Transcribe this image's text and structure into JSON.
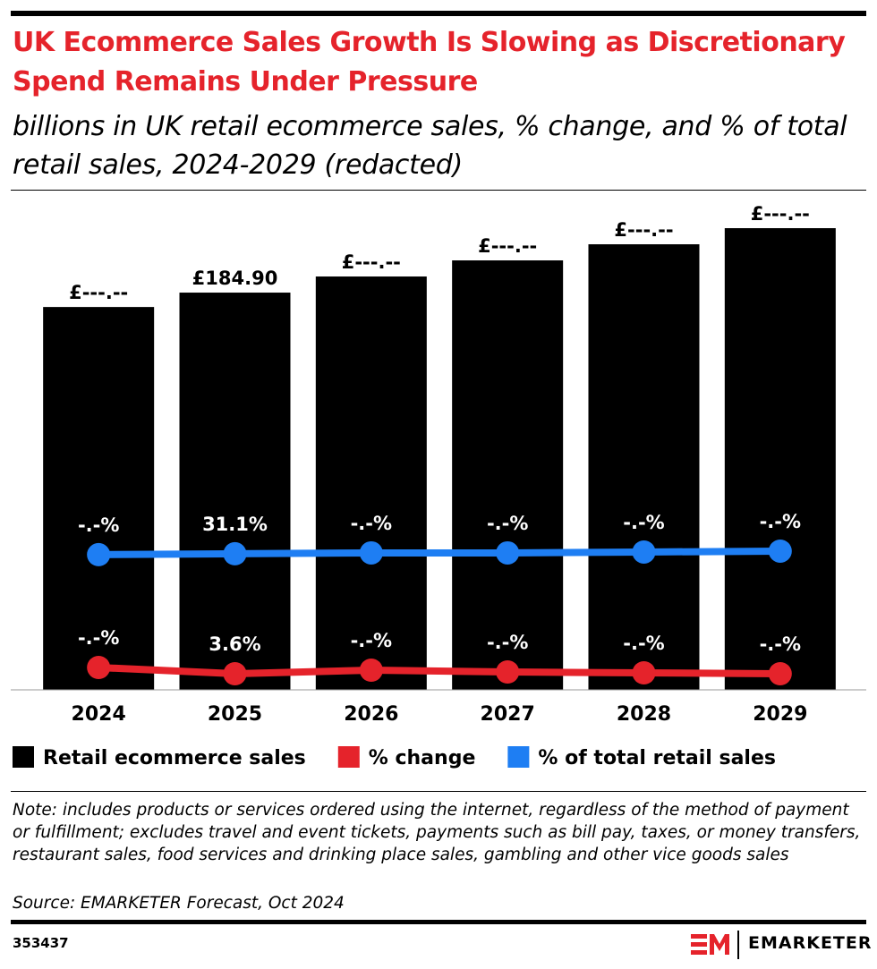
{
  "chart_data": {
    "type": "bar",
    "title": "UK Ecommerce Sales Growth Is Slowing as Discretionary Spend Remains Under Pressure",
    "subtitle": "billions in UK retail ecommerce sales, % change, and % of total retail sales, 2024-2029 (redacted)",
    "categories": [
      "2024",
      "2025",
      "2026",
      "2027",
      "2028",
      "2029"
    ],
    "series": [
      {
        "name": "Retail ecommerce sales",
        "color": "#000000",
        "type": "bar",
        "values": [
          178.2,
          184.9,
          192.4,
          199.9,
          207.4,
          214.9
        ],
        "value_labels": [
          "£---.--",
          "£184.90",
          "£---.--",
          "£---.--",
          "£---.--",
          "£---.--"
        ]
      },
      {
        "name": "% change",
        "color": "#e5232b",
        "type": "line",
        "values": [
          5.0,
          3.6,
          4.4,
          4.0,
          3.8,
          3.6
        ],
        "value_labels": [
          "-.-%",
          "3.6%",
          "-.-%",
          "-.-%",
          "-.-%",
          "-.-%"
        ]
      },
      {
        "name": "% of total retail sales",
        "color": "#1e7ef3",
        "type": "line",
        "values": [
          30.9,
          31.1,
          31.3,
          31.3,
          31.5,
          31.7
        ],
        "value_labels": [
          "-.-%",
          "31.1%",
          "-.-%",
          "-.-%",
          "-.-%",
          "-.-%"
        ]
      }
    ],
    "note": "Note: includes products or services ordered using the internet, regardless of the method of payment or fulfillment; excludes travel and event tickets, payments such as bill pay, taxes, or money transfers, restaurant sales, food services and drinking place sales, gambling and other vice goods sales",
    "source": "Source: EMARKETER Forecast, Oct 2024",
    "chart_id": "353437",
    "brand": "EMARKETER"
  }
}
